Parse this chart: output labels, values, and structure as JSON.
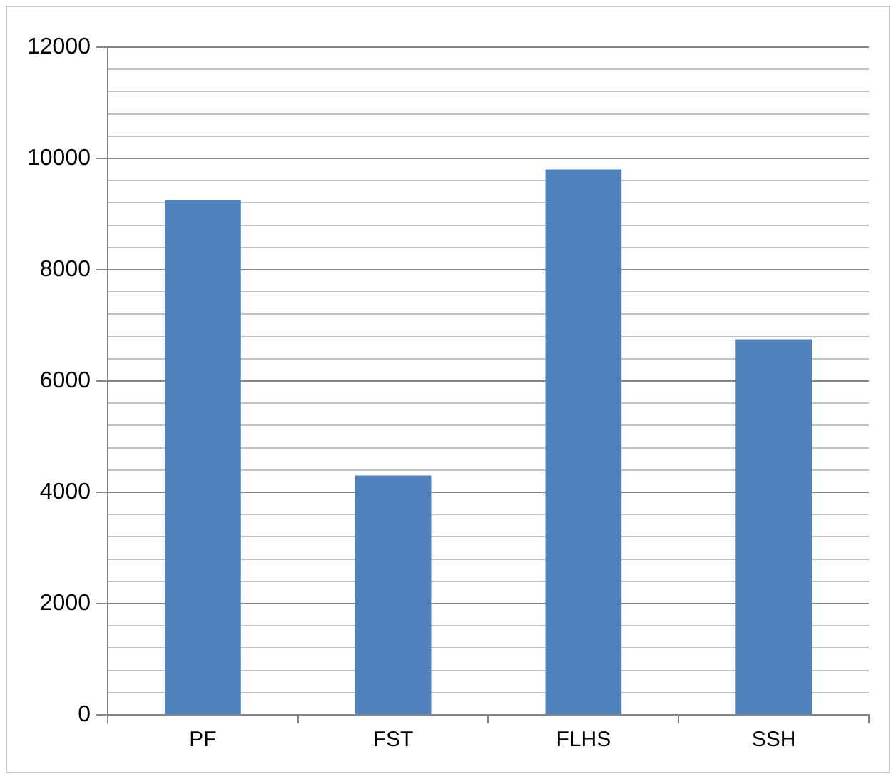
{
  "chart_data": {
    "type": "bar",
    "categories": [
      "PF",
      "FST",
      "FLHS",
      "SSH"
    ],
    "values": [
      9250,
      4300,
      9800,
      6750
    ],
    "color": "#4f81bd",
    "ylim": [
      0,
      12000
    ],
    "yticks": [
      0,
      {
        "value": 400,
        "label": null
      },
      {
        "value": 800,
        "label": null
      },
      {
        "value": 1200,
        "label": null
      },
      {
        "value": 1600,
        "label": null
      },
      2000,
      {
        "value": 2400,
        "label": null
      },
      {
        "value": 2800,
        "label": null
      },
      {
        "value": 3200,
        "label": null
      },
      {
        "value": 3600,
        "label": null
      },
      4000,
      {
        "value": 4400,
        "label": null
      },
      {
        "value": 4800,
        "label": null
      },
      {
        "value": 5200,
        "label": null
      },
      {
        "value": 5600,
        "label": null
      },
      6000,
      {
        "value": 6400,
        "label": null
      },
      {
        "value": 6800,
        "label": null
      },
      {
        "value": 7200,
        "label": null
      },
      {
        "value": 7600,
        "label": null
      },
      8000,
      {
        "value": 8400,
        "label": null
      },
      {
        "value": 8800,
        "label": null
      },
      {
        "value": 9200,
        "label": null
      },
      {
        "value": 9600,
        "label": null
      },
      10000,
      {
        "value": 10400,
        "label": null
      },
      {
        "value": 10800,
        "label": null
      },
      {
        "value": 11200,
        "label": null
      },
      {
        "value": 11600,
        "label": null
      },
      12000
    ],
    "grid": "y",
    "legend": false
  }
}
